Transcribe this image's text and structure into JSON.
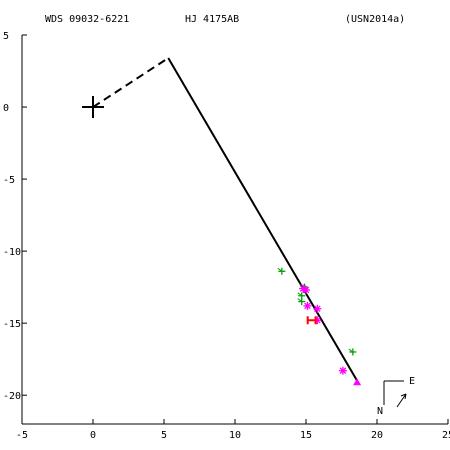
{
  "header": {
    "wds_id": "WDS 09032-6221",
    "discoverer": "HJ 4175AB",
    "orbit_ref": "(USN2014a)"
  },
  "compass": {
    "east_label": "E",
    "north_label": "N"
  },
  "colors": {
    "axes": "#000000",
    "orbit": "#000000",
    "node_line": "#000000",
    "visual_obs": "#00a000",
    "speckle_obs": "#ff00ff",
    "hipparcos": "#ff0000",
    "residual": "#00a000"
  },
  "chart_data": {
    "type": "scatter",
    "title": "",
    "xlabel": "",
    "ylabel": "",
    "xlim": [
      -5,
      25
    ],
    "ylim": [
      -5,
      22
    ],
    "xticks": [
      -5,
      0,
      5,
      10,
      15,
      20,
      25
    ],
    "yticks": [
      -5,
      0,
      5,
      10,
      15,
      20
    ],
    "ytick_labels": [
      "5",
      "0",
      "-5",
      "-10",
      "-15",
      "-20"
    ],
    "primary_star": [
      0,
      0
    ],
    "node_line": [
      [
        0,
        0
      ],
      [
        5.3,
        -3.4
      ]
    ],
    "orbit": [
      [
        5.3,
        -3.4
      ],
      [
        18.6,
        19.0
      ]
    ],
    "series": [
      {
        "marker": "plus",
        "points": [
          [
            13.3,
            11.4
          ],
          [
            14.7,
            13.1
          ],
          [
            14.7,
            13.5
          ],
          [
            18.3,
            17.0
          ],
          [
            14.9,
            12.5
          ]
        ]
      },
      {
        "marker": "asterisk",
        "points": [
          [
            15.1,
            13.8
          ],
          [
            15.8,
            14.0
          ],
          [
            15.8,
            14.8
          ],
          [
            15.0,
            12.7
          ],
          [
            14.8,
            12.6
          ],
          [
            17.6,
            18.3
          ]
        ]
      },
      {
        "marker": "triangle",
        "points": [
          [
            18.6,
            19.1
          ]
        ]
      },
      {
        "marker": "H",
        "points": [
          [
            15.4,
            14.8
          ]
        ]
      }
    ]
  }
}
